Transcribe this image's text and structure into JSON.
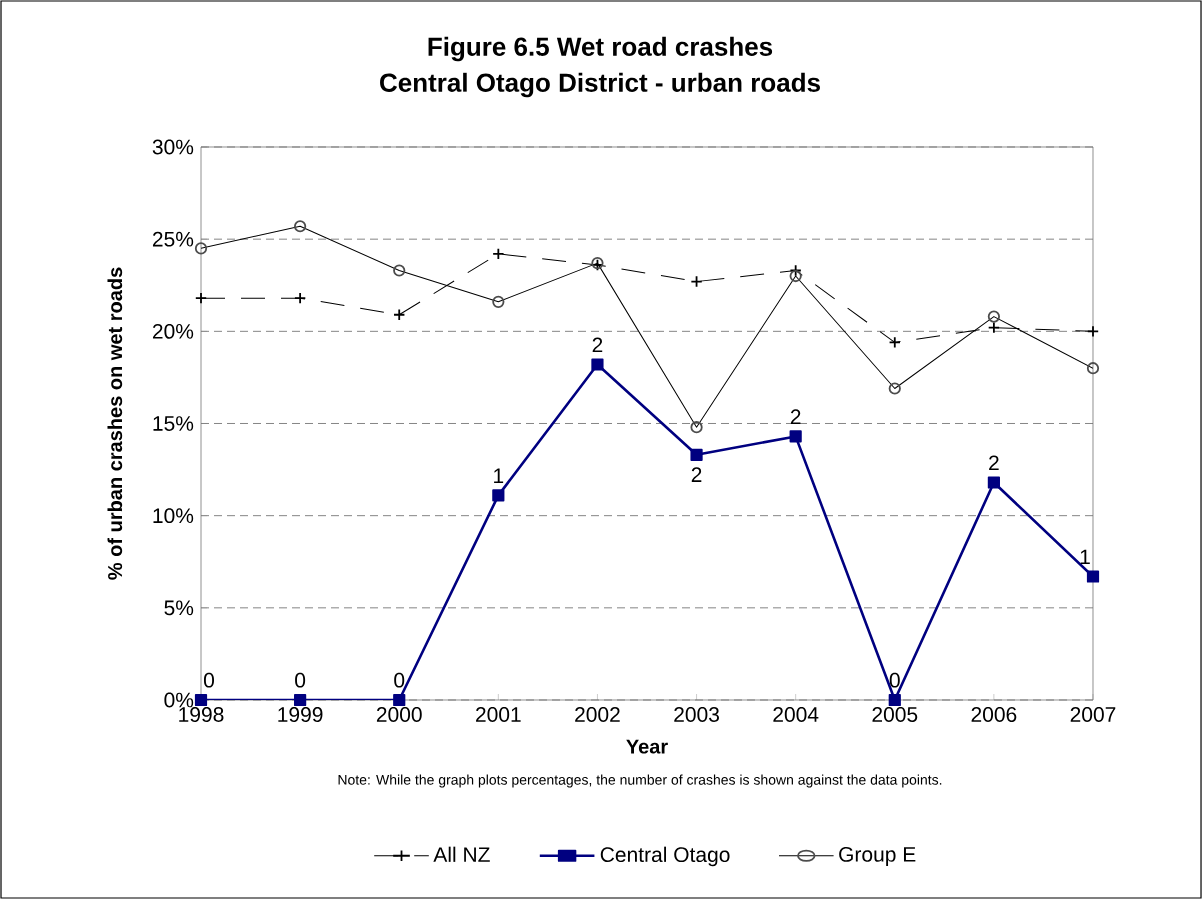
{
  "chart_data": {
    "type": "line",
    "title": "Figure 6.5 Wet road crashes",
    "subtitle": "Central Otago District - urban roads",
    "xlabel": "Year",
    "ylabel": "% of urban crashes on wet roads",
    "annotations": [
      "Note: While the graph plots percentages, the number of crashes is shown against the  data points.",
      {
        "text": "0",
        "x": "1998",
        "y": 0
      },
      {
        "text": "0",
        "x": "1999",
        "y": 0
      },
      {
        "text": "0",
        "x": "2000",
        "y": 0
      },
      {
        "text": "1",
        "x": "2001",
        "y": 11.1
      },
      {
        "text": "2",
        "x": "2002",
        "y": 18.2
      },
      {
        "text": "2",
        "x": "2003",
        "y": 13.3
      },
      {
        "text": "2",
        "x": "2004",
        "y": 14.3
      },
      {
        "text": "0",
        "x": "2005",
        "y": 0
      },
      {
        "text": "2",
        "x": "2006",
        "y": 11.8
      },
      {
        "text": "1",
        "x": "2007",
        "y": 6.7
      }
    ],
    "categories": [
      "1998",
      "1999",
      "2000",
      "2001",
      "2002",
      "2003",
      "2004",
      "2005",
      "2006",
      "2007"
    ],
    "series": [
      {
        "name": "All NZ",
        "color": "#000000",
        "marker": "cross",
        "line_style": "dashed",
        "values": [
          21.8,
          21.8,
          20.9,
          24.2,
          23.6,
          22.7,
          23.3,
          19.4,
          20.2,
          20.0
        ]
      },
      {
        "name": "Central Otago",
        "color": "#000080",
        "marker": "square",
        "line_style": "solid",
        "values": [
          0,
          0,
          0,
          11.1,
          18.2,
          13.3,
          14.3,
          0,
          11.8,
          6.7
        ]
      },
      {
        "name": "Group E",
        "color": "#000000",
        "marker": "circle",
        "line_style": "solid",
        "values": [
          24.5,
          25.7,
          23.3,
          21.6,
          23.7,
          14.8,
          23.0,
          16.9,
          20.8,
          18.0
        ]
      }
    ],
    "ylim": [
      0,
      30
    ],
    "yticks": [
      {
        "value": 0,
        "label": "0%"
      },
      {
        "value": 5,
        "label": "5%"
      },
      {
        "value": 10,
        "label": "10%"
      },
      {
        "value": 15,
        "label": "15%"
      },
      {
        "value": 20,
        "label": "20%"
      },
      {
        "value": 25,
        "label": "25%"
      },
      {
        "value": 30,
        "label": "30%"
      }
    ],
    "grid": "y",
    "legend": "bottom"
  }
}
